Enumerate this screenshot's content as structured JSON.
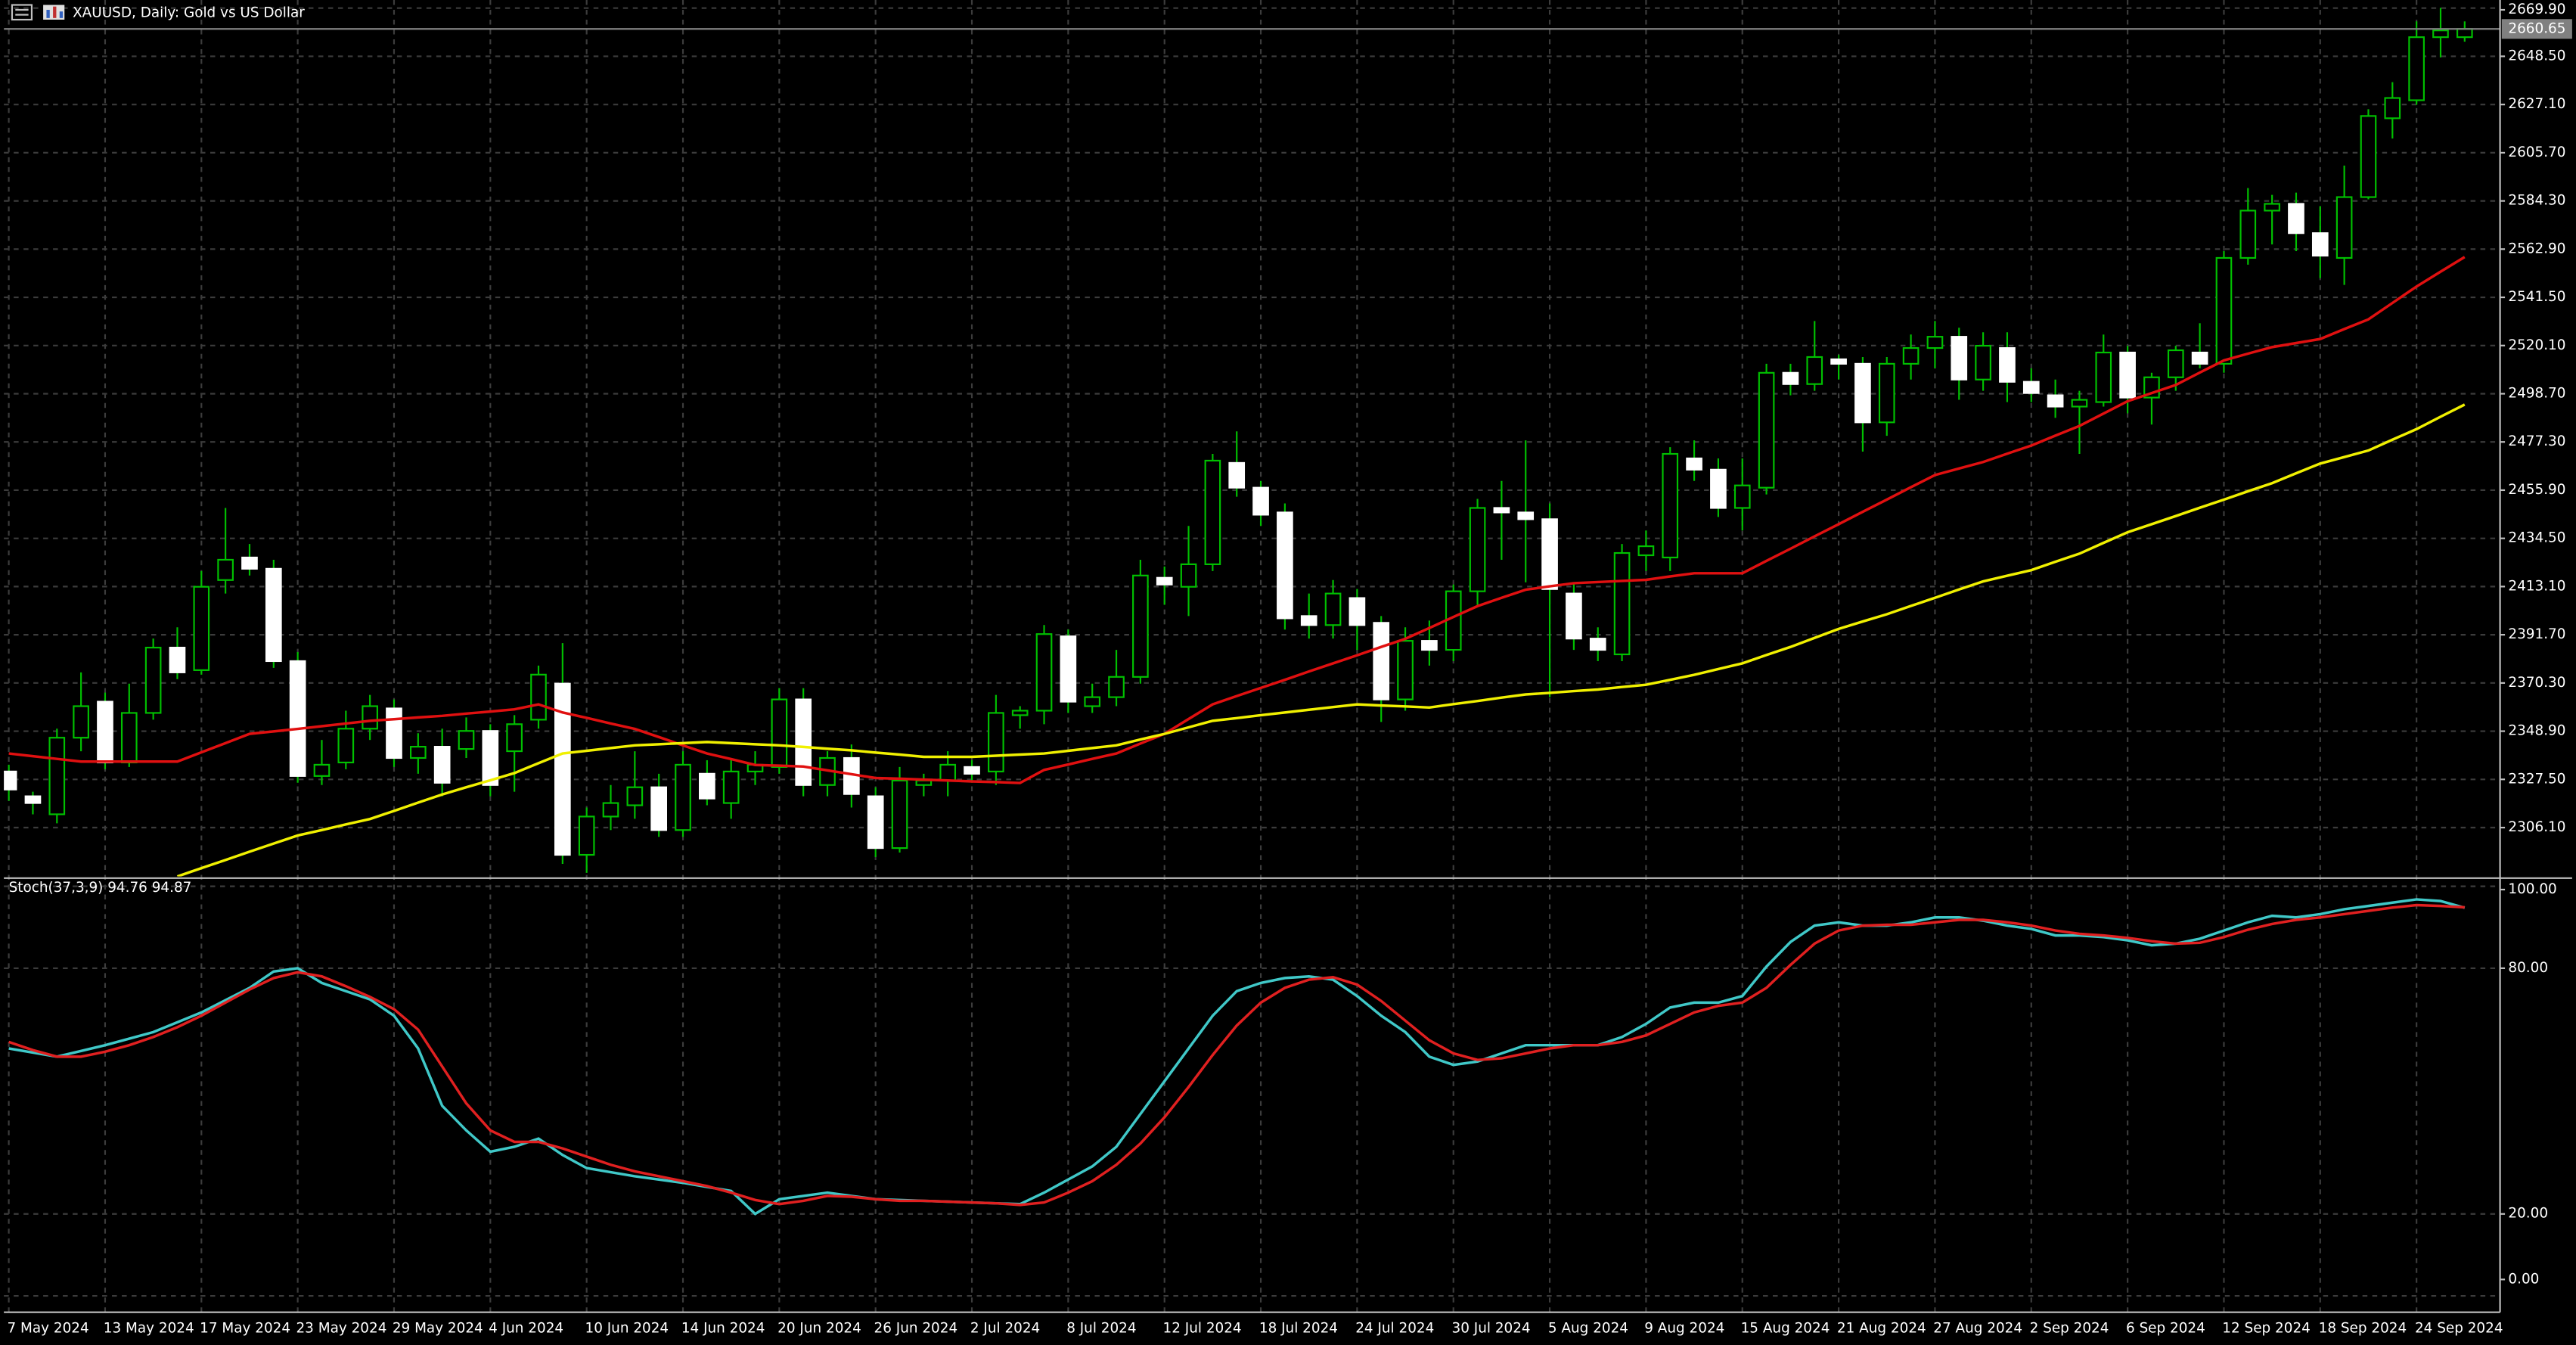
{
  "chart_data": [
    {
      "type": "candlestick",
      "title": "XAUUSD, Daily:  Gold vs US Dollar",
      "categories": [
        "7 May 2024",
        null,
        null,
        null,
        "13 May 2024",
        null,
        null,
        null,
        "17 May 2024",
        null,
        null,
        null,
        "23 May 2024",
        null,
        null,
        null,
        "29 May 2024",
        null,
        null,
        null,
        "4 Jun 2024",
        null,
        null,
        null,
        "10 Jun 2024",
        null,
        null,
        null,
        "14 Jun 2024",
        null,
        null,
        null,
        "20 Jun 2024",
        null,
        null,
        null,
        "26 Jun 2024",
        null,
        null,
        null,
        "2 Jul 2024",
        null,
        null,
        null,
        "8 Jul 2024",
        null,
        null,
        null,
        "12 Jul 2024",
        null,
        null,
        null,
        "18 Jul 2024",
        null,
        null,
        null,
        "24 Jul 2024",
        null,
        null,
        null,
        "30 Jul 2024",
        null,
        null,
        null,
        "5 Aug 2024",
        null,
        null,
        null,
        "9 Aug 2024",
        null,
        null,
        null,
        "15 Aug 2024",
        null,
        null,
        null,
        "21 Aug 2024",
        null,
        null,
        null,
        "27 Aug 2024",
        null,
        null,
        null,
        "2 Sep 2024",
        null,
        null,
        null,
        "6 Sep 2024",
        null,
        null,
        null,
        "12 Sep 2024",
        null,
        null,
        null,
        "18 Sep 2024",
        null,
        null,
        null,
        "24 Sep 2024",
        null,
        null
      ],
      "open": [
        2331,
        2320,
        2312,
        2346,
        2362,
        2335,
        2357,
        2386,
        2376,
        2416,
        2426,
        2421,
        2380,
        2329,
        2335,
        2350,
        2359,
        2337,
        2342,
        2341,
        2349,
        2340,
        2354,
        2370,
        2294,
        2311,
        2316,
        2324,
        2305,
        2330,
        2317,
        2331,
        2333,
        2363,
        2325,
        2337,
        2320,
        2297,
        2325,
        2327,
        2333,
        2331,
        2356,
        2358,
        2391,
        2360,
        2364,
        2373,
        2417,
        2413,
        2423,
        2468,
        2457,
        2446,
        2400,
        2396,
        2408,
        2397,
        2363,
        2389,
        2385,
        2411,
        2448,
        2446,
        2443,
        2410,
        2390,
        2383,
        2427,
        2426,
        2470,
        2465,
        2448,
        2457,
        2508,
        2503,
        2514,
        2512,
        2486,
        2512,
        2519,
        2524,
        2505,
        2519,
        2504,
        2498,
        2493,
        2495,
        2517,
        2497,
        2506,
        2517,
        2512,
        2559,
        2580,
        2583,
        2570,
        2559,
        2586,
        2621,
        2629,
        2657,
        2657
      ],
      "high": [
        2334,
        2322,
        2350,
        2375,
        2366,
        2370,
        2390,
        2395,
        2420,
        2448,
        2432,
        2425,
        2384,
        2345,
        2358,
        2365,
        2363,
        2348,
        2350,
        2355,
        2352,
        2356,
        2378,
        2388,
        2315,
        2325,
        2340,
        2330,
        2340,
        2336,
        2336,
        2340,
        2368,
        2368,
        2340,
        2343,
        2324,
        2333,
        2330,
        2340,
        2336,
        2365,
        2360,
        2396,
        2394,
        2370,
        2385,
        2425,
        2422,
        2440,
        2472,
        2482,
        2460,
        2450,
        2410,
        2416,
        2412,
        2400,
        2395,
        2398,
        2414,
        2452,
        2460,
        2478,
        2450,
        2415,
        2395,
        2432,
        2438,
        2475,
        2478,
        2470,
        2470,
        2512,
        2512,
        2531,
        2516,
        2515,
        2515,
        2525,
        2531,
        2528,
        2526,
        2526,
        2510,
        2505,
        2500,
        2525,
        2520,
        2508,
        2520,
        2530,
        2562,
        2590,
        2587,
        2588,
        2582,
        2600,
        2625,
        2637,
        2664,
        2670,
        2664
      ],
      "low": [
        2318,
        2312,
        2308,
        2340,
        2332,
        2333,
        2354,
        2372,
        2374,
        2410,
        2418,
        2377,
        2326,
        2325,
        2332,
        2345,
        2333,
        2330,
        2320,
        2337,
        2320,
        2322,
        2350,
        2290,
        2286,
        2305,
        2310,
        2302,
        2302,
        2316,
        2310,
        2325,
        2330,
        2320,
        2320,
        2315,
        2293,
        2295,
        2320,
        2320,
        2326,
        2325,
        2350,
        2352,
        2357,
        2357,
        2360,
        2370,
        2405,
        2400,
        2420,
        2453,
        2440,
        2394,
        2390,
        2390,
        2385,
        2353,
        2358,
        2378,
        2380,
        2405,
        2425,
        2415,
        2364,
        2385,
        2380,
        2380,
        2420,
        2420,
        2460,
        2444,
        2438,
        2454,
        2498,
        2500,
        2505,
        2473,
        2480,
        2505,
        2510,
        2496,
        2500,
        2495,
        2495,
        2488,
        2472,
        2493,
        2490,
        2485,
        2500,
        2510,
        2508,
        2556,
        2565,
        2562,
        2550,
        2547,
        2585,
        2612,
        2627,
        2648,
        2655
      ],
      "close": [
        2323,
        2317,
        2346,
        2360,
        2335,
        2357,
        2386,
        2375,
        2413,
        2425,
        2421,
        2380,
        2329,
        2334,
        2350,
        2360,
        2337,
        2342,
        2326,
        2349,
        2325,
        2352,
        2374,
        2294,
        2311,
        2317,
        2324,
        2305,
        2334,
        2319,
        2331,
        2334,
        2363,
        2325,
        2337,
        2321,
        2297,
        2327,
        2327,
        2334,
        2330,
        2357,
        2358,
        2392,
        2362,
        2364,
        2373,
        2418,
        2414,
        2423,
        2469,
        2457,
        2445,
        2399,
        2396,
        2410,
        2396,
        2363,
        2389,
        2385,
        2411,
        2448,
        2446,
        2443,
        2412,
        2390,
        2385,
        2428,
        2431,
        2472,
        2465,
        2448,
        2458,
        2508,
        2503,
        2515,
        2512,
        2486,
        2512,
        2519,
        2524,
        2505,
        2520,
        2504,
        2499,
        2493,
        2496,
        2517,
        2497,
        2506,
        2518,
        2512,
        2559,
        2580,
        2583,
        2570,
        2560,
        2586,
        2622,
        2630,
        2657,
        2660,
        2660.65
      ],
      "bull_color": "#00c000",
      "bear_color": "#ffffff",
      "series": [
        {
          "color": "#e01010",
          "values": [
            2339.0,
            2337.8,
            2336.6,
            2335.4,
            2335.4,
            2335.4,
            2335.4,
            2335.4,
            2339.5,
            2343.6,
            2347.7,
            2348.8,
            2349.9,
            2351.1,
            2352.3,
            2353.5,
            2354.2,
            2355.0,
            2355.7,
            2356.7,
            2357.6,
            2358.6,
            2360.8,
            2357.2,
            2354.8,
            2352.3,
            2349.9,
            2346.3,
            2342.6,
            2339.0,
            2336.5,
            2333.9,
            2333.6,
            2333.2,
            2331.5,
            2329.8,
            2328.1,
            2327.8,
            2327.4,
            2327.0,
            2326.6,
            2326.3,
            2325.9,
            2331.7,
            2334.1,
            2336.6,
            2339.0,
            2343.4,
            2347.7,
            2354.3,
            2360.8,
            2364.5,
            2368.1,
            2371.7,
            2375.4,
            2379.0,
            2382.6,
            2386.3,
            2389.9,
            2394.7,
            2399.6,
            2404.4,
            2408.1,
            2411.7,
            2413.2,
            2414.6,
            2415.1,
            2415.6,
            2416.1,
            2417.6,
            2419.0,
            2419.0,
            2419.0,
            2424.5,
            2429.9,
            2435.4,
            2440.8,
            2446.3,
            2451.7,
            2457.2,
            2462.6,
            2465.5,
            2468.4,
            2472.1,
            2475.7,
            2480.1,
            2484.4,
            2489.9,
            2495.4,
            2499.0,
            2502.6,
            2508.1,
            2513.5,
            2516.5,
            2519.4,
            2521.2,
            2523.0,
            2527.4,
            2531.7,
            2539.0,
            2546.3,
            2552.9,
            2559.4
          ]
        },
        {
          "color": "#f0f000",
          "values": [
            null,
            null,
            null,
            null,
            null,
            null,
            null,
            2284.4,
            2288.1,
            2291.7,
            2295.4,
            2299.0,
            2302.6,
            2305.0,
            2307.5,
            2309.9,
            2313.5,
            2317.2,
            2320.8,
            2324.0,
            2327.1,
            2330.3,
            2334.7,
            2339.0,
            2340.2,
            2341.4,
            2342.6,
            2343.1,
            2343.6,
            2344.1,
            2343.6,
            2343.1,
            2342.6,
            2341.9,
            2341.1,
            2340.4,
            2339.4,
            2338.5,
            2337.5,
            2337.5,
            2337.5,
            2338.0,
            2338.5,
            2339.0,
            2340.2,
            2341.4,
            2342.6,
            2345.2,
            2347.7,
            2350.6,
            2353.5,
            2354.7,
            2356.0,
            2357.2,
            2358.4,
            2359.6,
            2360.8,
            2360.3,
            2359.9,
            2359.4,
            2360.9,
            2362.3,
            2363.8,
            2365.2,
            2365.9,
            2366.7,
            2367.4,
            2368.5,
            2369.5,
            2371.7,
            2373.9,
            2376.5,
            2379.0,
            2382.7,
            2386.3,
            2390.3,
            2394.3,
            2397.6,
            2400.8,
            2404.5,
            2408.1,
            2411.8,
            2415.4,
            2417.9,
            2420.4,
            2424.1,
            2427.7,
            2432.5,
            2437.2,
            2440.8,
            2444.4,
            2448.1,
            2451.7,
            2455.4,
            2459.0,
            2463.4,
            2467.7,
            2470.6,
            2473.5,
            2478.3,
            2483.0,
            2488.5,
            2493.9
          ]
        }
      ],
      "current_price": 2660.65,
      "ylim": [
        2284.4,
        2673.5
      ],
      "yticks": [
        {
          "value": 2669.9,
          "label": "2669.90"
        },
        {
          "value": 2648.5,
          "label": "2648.50"
        },
        {
          "value": 2627.1,
          "label": "2627.10"
        },
        {
          "value": 2605.7,
          "label": "2605.70"
        },
        {
          "value": 2584.3,
          "label": "2584.30"
        },
        {
          "value": 2562.9,
          "label": "2562.90"
        },
        {
          "value": 2541.5,
          "label": "2541.50"
        },
        {
          "value": 2520.1,
          "label": "2520.10"
        },
        {
          "value": 2498.7,
          "label": "2498.70"
        },
        {
          "value": 2477.3,
          "label": "2477.30"
        },
        {
          "value": 2455.9,
          "label": "2455.90"
        },
        {
          "value": 2434.5,
          "label": "2434.50"
        },
        {
          "value": 2413.1,
          "label": "2413.10"
        },
        {
          "value": 2391.7,
          "label": "2391.70"
        },
        {
          "value": 2370.3,
          "label": "2370.30"
        },
        {
          "value": 2348.9,
          "label": "2348.90"
        },
        {
          "value": 2327.5,
          "label": "2327.50"
        },
        {
          "value": 2306.1,
          "label": "2306.10"
        }
      ],
      "grid": true
    },
    {
      "type": "line",
      "title": "Stoch(37,3,9) 94.76 94.87",
      "series": [
        {
          "color": "#40c8c8",
          "values": [
            60.4,
            59.4,
            58.4,
            59.8,
            61.2,
            62.8,
            64.4,
            66.8,
            69.2,
            72.2,
            75.2,
            79.2,
            80,
            76.4,
            74.4,
            72.4,
            68.4,
            60.4,
            46.4,
            40.4,
            35.2,
            36.4,
            38.4,
            34.4,
            31.2,
            30.2,
            29.2,
            28.4,
            27.6,
            26.6,
            25.6,
            20,
            23.6,
            24.4,
            25.2,
            24.4,
            23.6,
            23.4,
            23.2,
            23,
            22.8,
            22.6,
            22.4,
            25.2,
            28.4,
            31.6,
            36.4,
            44.4,
            52.4,
            60.4,
            68.4,
            74.4,
            76.4,
            77.6,
            78,
            77.2,
            73.2,
            68.4,
            64.4,
            58.4,
            56.4,
            57.2,
            59.2,
            61.2,
            61.2,
            61.2,
            61.2,
            63.2,
            66.4,
            70.4,
            71.6,
            71.6,
            73.2,
            80.4,
            86.4,
            90.4,
            91.2,
            90.4,
            90.4,
            91.2,
            92.4,
            92.4,
            91.6,
            90.4,
            89.6,
            88,
            88,
            87.6,
            86.8,
            85.6,
            86,
            87.2,
            89.2,
            91.2,
            92.8,
            92.4,
            93.2,
            94.4,
            95.2,
            96,
            96.8,
            96.4,
            94.76
          ]
        },
        {
          "color": "#e02020",
          "values": [
            62,
            60,
            58.4,
            58.4,
            59.6,
            61.2,
            63.2,
            65.6,
            68.4,
            71.6,
            74.8,
            77.6,
            79,
            78,
            75.6,
            73,
            70,
            65,
            56,
            47,
            40.4,
            37.6,
            37.6,
            36,
            34,
            32,
            30.4,
            29.2,
            28,
            26.8,
            25.2,
            23.4,
            22.4,
            23.2,
            24.4,
            24.2,
            23.6,
            23.2,
            23.2,
            23,
            22.8,
            22.6,
            22.2,
            22.8,
            25.2,
            28,
            32,
            37.2,
            43.6,
            51,
            58.8,
            66,
            71.6,
            75.2,
            77.2,
            77.8,
            76,
            72,
            67.2,
            62.4,
            59.2,
            57.6,
            58,
            59.2,
            60.4,
            61.2,
            61.2,
            62,
            63.6,
            66.4,
            69.2,
            70.8,
            71.6,
            75.2,
            80.8,
            86,
            89.2,
            90.4,
            90.6,
            90.6,
            91.2,
            91.8,
            91.8,
            91.2,
            90.4,
            89.2,
            88.4,
            88,
            87.4,
            86.6,
            86,
            86.2,
            87.6,
            89.4,
            90.8,
            91.8,
            92.4,
            93.2,
            94,
            94.8,
            95.4,
            95.2,
            94.87
          ]
        }
      ],
      "ylim": [
        -4,
        101.6
      ],
      "yticks": [
        {
          "value": 100,
          "label": "100.00"
        },
        {
          "value": 80,
          "label": "80.00"
        },
        {
          "value": 20,
          "label": "20.00"
        },
        {
          "value": 0,
          "label": "0.00"
        }
      ],
      "grid": true
    }
  ]
}
